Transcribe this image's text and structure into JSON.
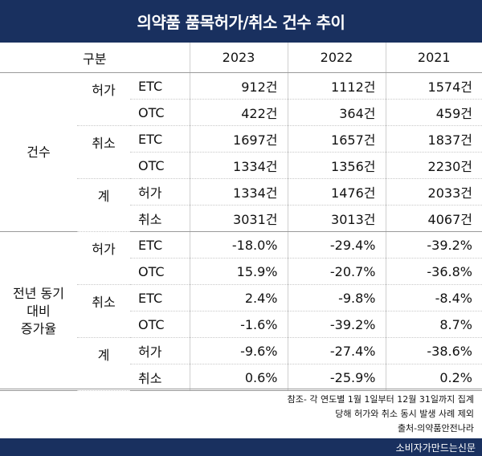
{
  "title": "의약품 품목허가/취소 건수 추이",
  "header": {
    "category": "구분",
    "years": [
      "2023",
      "2022",
      "2021"
    ]
  },
  "sections": [
    {
      "label": "건수",
      "groups": [
        {
          "label": "허가",
          "rows": [
            {
              "sub": "ETC",
              "values": [
                "912건",
                "1112건",
                "1574건"
              ]
            },
            {
              "sub": "OTC",
              "values": [
                "422건",
                "364건",
                "459건"
              ]
            }
          ]
        },
        {
          "label": "취소",
          "rows": [
            {
              "sub": "ETC",
              "values": [
                "1697건",
                "1657건",
                "1837건"
              ]
            },
            {
              "sub": "OTC",
              "values": [
                "1334건",
                "1356건",
                "2230건"
              ]
            }
          ]
        },
        {
          "label": "계",
          "rows": [
            {
              "sub": "허가",
              "values": [
                "1334건",
                "1476건",
                "2033건"
              ]
            },
            {
              "sub": "취소",
              "values": [
                "3031건",
                "3013건",
                "4067건"
              ]
            }
          ]
        }
      ]
    },
    {
      "label": "전년 동기\n대비\n증가율",
      "groups": [
        {
          "label": "허가",
          "rows": [
            {
              "sub": "ETC",
              "values": [
                "-18.0%",
                "-29.4%",
                "-39.2%"
              ]
            },
            {
              "sub": "OTC",
              "values": [
                "15.9%",
                "-20.7%",
                "-36.8%"
              ]
            }
          ]
        },
        {
          "label": "취소",
          "rows": [
            {
              "sub": "ETC",
              "values": [
                "2.4%",
                "-9.8%",
                "-8.4%"
              ]
            },
            {
              "sub": "OTC",
              "values": [
                "-1.6%",
                "-39.2%",
                "8.7%"
              ]
            }
          ]
        },
        {
          "label": "계",
          "rows": [
            {
              "sub": "허가",
              "values": [
                "-9.6%",
                "-27.4%",
                "-38.6%"
              ]
            },
            {
              "sub": "취소",
              "values": [
                "0.6%",
                "-25.9%",
                "0.2%"
              ]
            }
          ]
        }
      ]
    }
  ],
  "notes": [
    "참조- 각 연도별 1월 1일부터 12월 31일까지 집계",
    "당해 허가와 취소 동시 발생 사례 제외",
    "출처-의약품안전나라"
  ],
  "footer": "소비자가만드는신문"
}
